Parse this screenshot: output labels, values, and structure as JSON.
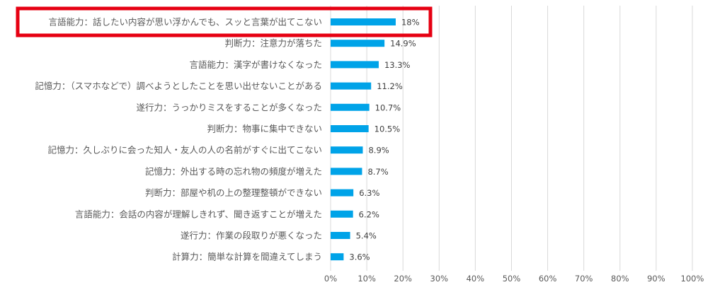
{
  "chart_data": {
    "type": "bar",
    "orientation": "horizontal",
    "categories": [
      "言語能力：話したい内容が思い浮かんでも、スッと言葉が出てこない",
      "判断力：注意力が落ちた",
      "言語能力：漢字が書けなくなった",
      "記憶力：（スマホなどで）調べようとしたことを思い出せないことがある",
      "遂行力：うっかりミスをすることが多くなった",
      "判断力：物事に集中できない",
      "記憶力：久しぶりに会った知人・友人の人の名前がすぐに出てこない",
      "記憶力：外出する時の忘れ物の頻度が増えた",
      "判断力：部屋や机の上の整理整頓ができない",
      "言語能力：会話の内容が理解しきれず、聞き返すことが増えた",
      "遂行力：作業の段取りが悪くなった",
      "計算力：簡単な計算を間違えてしまう"
    ],
    "values": [
      18,
      14.9,
      13.3,
      11.2,
      10.7,
      10.5,
      8.9,
      8.7,
      6.3,
      6.2,
      5.4,
      3.6
    ],
    "value_labels": [
      "18%",
      "14.9%",
      "13.3%",
      "11.2%",
      "10.7%",
      "10.5%",
      "8.9%",
      "8.7%",
      "6.3%",
      "6.2%",
      "5.4%",
      "3.6%"
    ],
    "xlim": [
      0,
      100
    ],
    "x_ticks": [
      0,
      10,
      20,
      30,
      40,
      50,
      60,
      70,
      80,
      90,
      100
    ],
    "x_tick_labels": [
      "0%",
      "10%",
      "20%",
      "30%",
      "40%",
      "50%",
      "60%",
      "70%",
      "80%",
      "90%",
      "100%"
    ],
    "grid": "vertical",
    "highlighted_category_index": 0,
    "title": "",
    "xlabel": "",
    "ylabel": ""
  },
  "colors": {
    "bar": "#00a3e8",
    "highlight_border": "#e60012",
    "grid": "#d9d9d9",
    "text": "#595959"
  }
}
